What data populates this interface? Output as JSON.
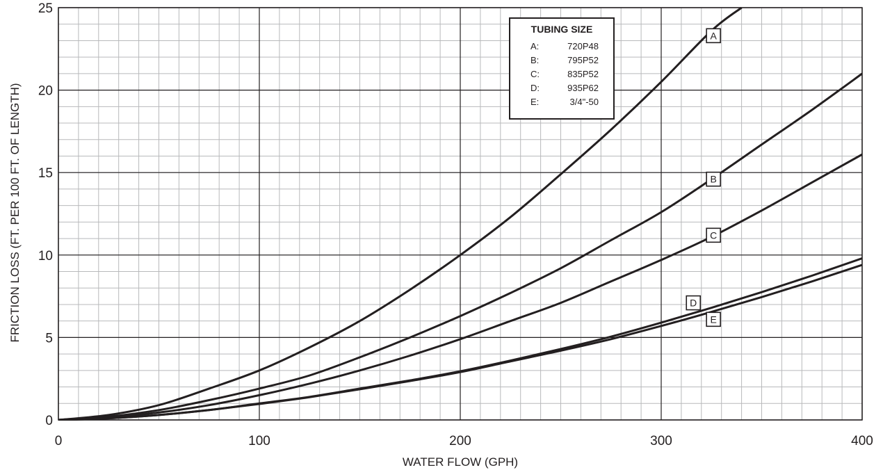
{
  "chart_data": {
    "type": "line",
    "xlabel": "WATER FLOW (GPH)",
    "ylabel": "FRICTION LOSS (FT. PER 100 FT. OF LENGTH)",
    "xlim": [
      0,
      400
    ],
    "ylim": [
      0,
      25
    ],
    "x_ticks": [
      0,
      100,
      200,
      300,
      400
    ],
    "y_ticks": [
      0,
      5,
      10,
      15,
      20,
      25
    ],
    "grid": true,
    "legend_placement": "top-right",
    "legend": {
      "title": "TUBING SIZE",
      "entries": [
        {
          "key": "A:",
          "label": "720P48"
        },
        {
          "key": "B:",
          "label": "795P52"
        },
        {
          "key": "C:",
          "label": "835P52"
        },
        {
          "key": "D:",
          "label": "935P62"
        },
        {
          "key": "E:",
          "label": "3/4\"-50"
        }
      ]
    },
    "series": [
      {
        "name": "A",
        "x": [
          0,
          25,
          50,
          75,
          100,
          125,
          150,
          175,
          200,
          225,
          250,
          275,
          300,
          325,
          340
        ],
        "values": [
          0,
          0.3,
          0.9,
          1.9,
          3.0,
          4.4,
          6.0,
          7.9,
          10.0,
          12.3,
          14.9,
          17.6,
          20.5,
          23.6,
          25.0
        ]
      },
      {
        "name": "B",
        "x": [
          0,
          25,
          50,
          75,
          100,
          125,
          150,
          175,
          200,
          225,
          250,
          275,
          300,
          325,
          350,
          375,
          400
        ],
        "values": [
          0,
          0.2,
          0.6,
          1.2,
          1.9,
          2.7,
          3.8,
          5.0,
          6.3,
          7.7,
          9.2,
          10.9,
          12.6,
          14.6,
          16.7,
          18.8,
          21.0
        ]
      },
      {
        "name": "C",
        "x": [
          0,
          25,
          50,
          75,
          100,
          125,
          150,
          175,
          200,
          225,
          250,
          275,
          300,
          325,
          350,
          375,
          400
        ],
        "values": [
          0,
          0.15,
          0.45,
          0.9,
          1.5,
          2.2,
          3.0,
          3.9,
          4.9,
          6.0,
          7.1,
          8.4,
          9.7,
          11.1,
          12.7,
          14.4,
          16.1
        ]
      },
      {
        "name": "D",
        "x": [
          0,
          25,
          50,
          75,
          100,
          125,
          150,
          175,
          200,
          225,
          250,
          275,
          300,
          325,
          350,
          375,
          400
        ],
        "values": [
          0,
          0.1,
          0.3,
          0.6,
          1.0,
          1.4,
          1.9,
          2.4,
          2.95,
          3.6,
          4.3,
          5.05,
          5.9,
          6.8,
          7.75,
          8.75,
          9.8
        ]
      },
      {
        "name": "E",
        "x": [
          0,
          25,
          50,
          75,
          100,
          125,
          150,
          175,
          200,
          225,
          250,
          275,
          300,
          325,
          350,
          375,
          400
        ],
        "values": [
          0,
          0.1,
          0.3,
          0.6,
          0.97,
          1.38,
          1.86,
          2.36,
          2.9,
          3.55,
          4.2,
          4.9,
          5.7,
          6.55,
          7.45,
          8.4,
          9.4
        ]
      }
    ],
    "curve_tags": [
      {
        "label": "A",
        "x": 326,
        "y": 23.3
      },
      {
        "label": "B",
        "x": 326,
        "y": 14.6
      },
      {
        "label": "C",
        "x": 326,
        "y": 11.2
      },
      {
        "label": "D",
        "x": 316,
        "y": 7.1
      },
      {
        "label": "E",
        "x": 326,
        "y": 6.1
      }
    ]
  },
  "colors": {
    "ink": "#231f20",
    "minor_grid": "#b8b9bb",
    "major_grid": "#231f20"
  }
}
